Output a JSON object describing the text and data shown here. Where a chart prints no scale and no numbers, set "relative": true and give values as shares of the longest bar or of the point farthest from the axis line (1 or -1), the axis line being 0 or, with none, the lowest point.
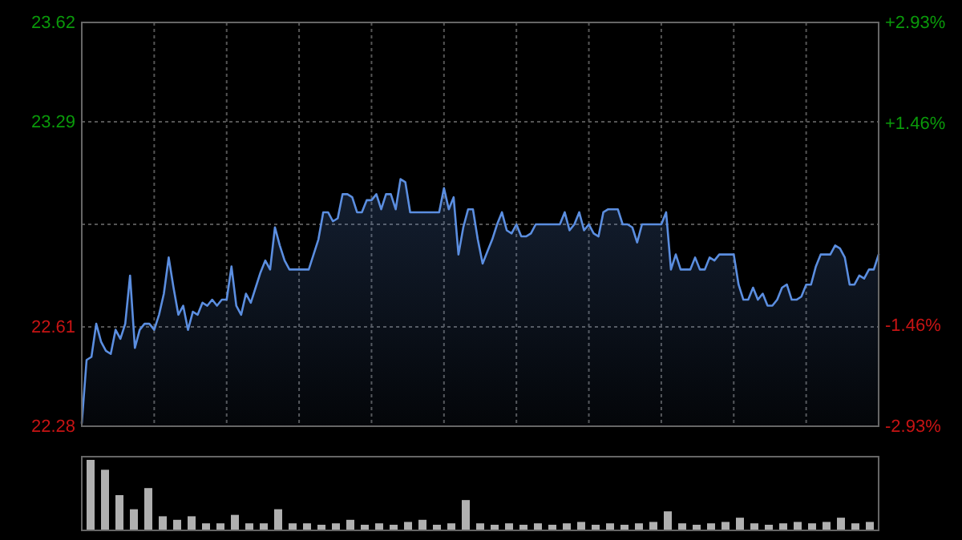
{
  "chart_data": [
    {
      "type": "area",
      "categories": [
        null,
        null,
        null,
        null,
        null,
        null,
        null,
        null,
        null,
        null,
        null,
        null,
        null,
        null,
        null,
        null,
        null,
        null,
        null,
        null,
        null,
        null,
        null,
        null,
        null,
        null,
        null,
        null,
        null,
        null,
        null,
        null,
        null,
        null,
        null,
        null,
        null,
        null,
        null,
        null,
        null,
        null,
        null,
        null,
        null,
        null,
        null,
        null,
        null,
        null,
        null,
        null,
        null,
        null,
        null,
        null,
        null,
        null,
        null,
        null,
        null,
        null,
        null,
        null,
        null,
        null,
        null,
        null,
        null,
        null,
        null,
        null,
        null,
        null,
        null,
        null,
        null,
        null,
        null,
        null,
        null,
        null,
        null,
        null,
        null,
        null,
        null,
        null,
        null,
        null,
        null,
        null,
        null,
        null,
        null,
        null,
        null,
        null,
        null,
        null,
        null,
        null,
        null,
        null,
        null,
        null,
        null,
        null,
        null,
        null,
        null,
        null,
        null,
        null,
        null,
        null,
        null,
        null,
        null,
        null,
        null,
        null,
        null,
        null,
        null,
        null,
        null,
        null,
        null,
        null,
        null,
        null,
        null,
        null,
        null,
        null,
        null,
        null,
        null,
        null,
        null,
        null,
        null,
        null,
        null,
        null,
        null,
        null,
        null,
        null,
        null,
        null,
        null,
        null,
        null,
        null,
        null,
        null,
        null,
        null,
        null,
        null,
        null,
        null,
        null,
        null
      ],
      "ylim": [
        22.28,
        23.62
      ],
      "yticks": [
        22.28,
        22.61,
        {
          "value": 22.95,
          "label": null
        },
        23.29,
        23.62
      ],
      "y2lim": [
        -2.93,
        2.93
      ],
      "y2ticks": [
        {
          "value": -2.93,
          "label": "-2.93%"
        },
        {
          "value": -1.46,
          "label": "-1.46%"
        },
        {
          "value": 0,
          "label": null
        },
        {
          "value": 1.46,
          "label": "+1.46%"
        },
        {
          "value": 2.93,
          "label": "+2.93%"
        }
      ],
      "grid": true,
      "series": [
        {
          "color": "#5b8ee0",
          "values": [
            22.29,
            22.5,
            22.51,
            22.62,
            22.56,
            22.53,
            22.52,
            22.6,
            22.57,
            22.62,
            22.78,
            22.54,
            22.6,
            22.62,
            22.62,
            22.6,
            22.65,
            22.72,
            22.84,
            22.74,
            22.65,
            22.68,
            22.6,
            22.66,
            22.65,
            22.69,
            22.68,
            22.7,
            22.68,
            22.7,
            22.7,
            22.81,
            22.68,
            22.65,
            22.72,
            22.69,
            22.74,
            22.79,
            22.83,
            22.8,
            22.94,
            22.88,
            22.83,
            22.8,
            22.8,
            22.8,
            22.8,
            22.8,
            22.85,
            22.9,
            22.99,
            22.99,
            22.96,
            22.97,
            23.05,
            23.05,
            23.04,
            22.99,
            22.99,
            23.03,
            23.03,
            23.05,
            23.0,
            23.05,
            23.05,
            23.0,
            23.1,
            23.09,
            22.99,
            22.99,
            22.99,
            22.99,
            22.99,
            22.99,
            22.99,
            23.07,
            23.0,
            23.04,
            22.85,
            22.94,
            23.0,
            23.0,
            22.9,
            22.82,
            22.86,
            22.9,
            22.95,
            22.99,
            22.93,
            22.92,
            22.95,
            22.91,
            22.91,
            22.92,
            22.95,
            22.95,
            22.95,
            22.95,
            22.95,
            22.95,
            22.99,
            22.93,
            22.95,
            22.99,
            22.93,
            22.95,
            22.92,
            22.91,
            22.99,
            23.0,
            23.0,
            23.0,
            22.95,
            22.95,
            22.94,
            22.89,
            22.95,
            22.95,
            22.95,
            22.95,
            22.95,
            22.99,
            22.8,
            22.85,
            22.8,
            22.8,
            22.8,
            22.84,
            22.8,
            22.8,
            22.84,
            22.83,
            22.85,
            22.85,
            22.85,
            22.85,
            22.75,
            22.7,
            22.7,
            22.74,
            22.7,
            22.72,
            22.68,
            22.68,
            22.7,
            22.74,
            22.75,
            22.7,
            22.7,
            22.71,
            22.75,
            22.75,
            22.81,
            22.85,
            22.85,
            22.85,
            22.88,
            22.87,
            22.84,
            22.75,
            22.75,
            22.78,
            22.77,
            22.8,
            22.8,
            22.85
          ]
        }
      ]
    },
    {
      "type": "bar",
      "relative": true,
      "color": "#b0b0b0",
      "categories": [
        null,
        null,
        null,
        null,
        null,
        null,
        null,
        null,
        null,
        null,
        null,
        null,
        null,
        null,
        null,
        null,
        null,
        null,
        null,
        null,
        null,
        null,
        null,
        null,
        null,
        null,
        null,
        null,
        null,
        null,
        null,
        null,
        null,
        null,
        null,
        null,
        null,
        null,
        null,
        null,
        null,
        null,
        null,
        null,
        null,
        null,
        null,
        null,
        null,
        null,
        null,
        null,
        null,
        null,
        null
      ],
      "values": [
        1,
        0.86,
        0.5,
        0.3,
        0.6,
        0.2,
        0.15,
        0.2,
        0.1,
        0.1,
        0.22,
        0.1,
        0.1,
        0.3,
        0.1,
        0.1,
        0.08,
        0.1,
        0.15,
        0.08,
        0.1,
        0.08,
        0.12,
        0.15,
        0.08,
        0.1,
        0.43,
        0.1,
        0.08,
        0.1,
        0.08,
        0.1,
        0.08,
        0.1,
        0.12,
        0.08,
        0.1,
        0.08,
        0.1,
        0.12,
        0.27,
        0.1,
        0.08,
        0.1,
        0.12,
        0.18,
        0.1,
        0.08,
        0.1,
        0.12,
        0.1,
        0.12,
        0.18,
        0.1,
        0.12
      ]
    }
  ]
}
